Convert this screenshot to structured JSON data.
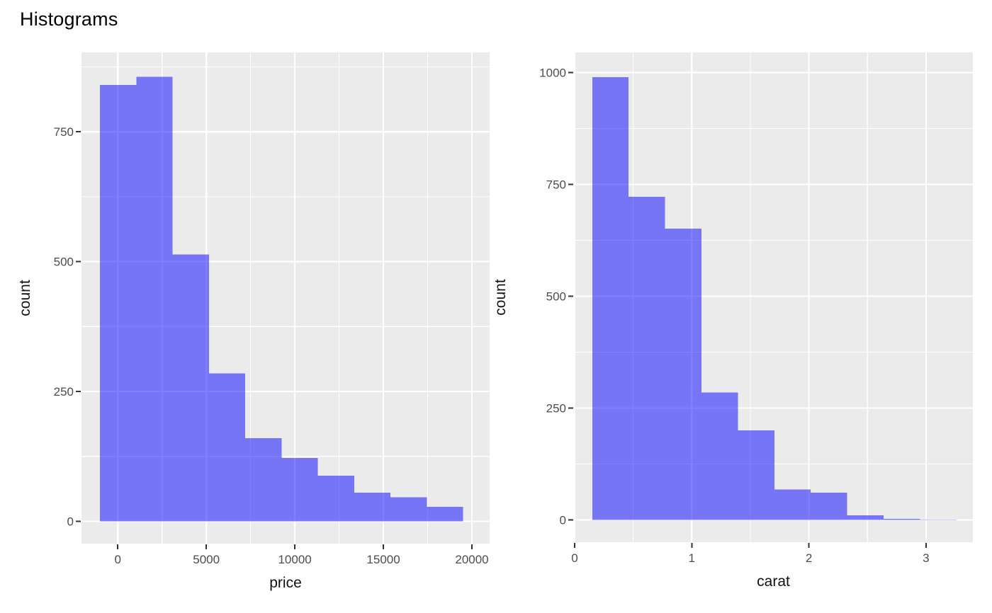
{
  "page_title": "Histograms",
  "colors": {
    "page_bg": "#FFFFFF",
    "panel_bg": "#EBEBEB",
    "grid": "#FFFFFF",
    "bar_fill": "#0000FF",
    "bar_alpha": 0.5,
    "tick_mark": "#333333",
    "tick_label": "#4D4D4D",
    "axis_title": "#111111",
    "title_color": "#000000"
  },
  "chart_data": [
    {
      "type": "bar",
      "variant": "histogram",
      "title": "",
      "xlabel": "price",
      "ylabel": "count",
      "bin_edges": [
        -1000,
        1050,
        3100,
        5150,
        7200,
        9250,
        11300,
        13350,
        15400,
        17450,
        19500
      ],
      "counts": [
        840,
        856,
        514,
        285,
        160,
        122,
        88,
        55,
        46,
        28
      ],
      "x_ticks": {
        "values": [
          0,
          5000,
          10000,
          15000,
          20000
        ],
        "labels": [
          "0",
          "5000",
          "10000",
          "15000",
          "20000"
        ],
        "minor": [
          2500,
          7500,
          12500,
          17500
        ]
      },
      "y_ticks": {
        "values": [
          0,
          250,
          500,
          750
        ],
        "labels": [
          "0",
          "250",
          "500",
          "750"
        ],
        "minor": [
          125,
          375,
          625,
          875
        ]
      },
      "xlim": [
        -2050,
        21000
      ],
      "ylim": [
        -43,
        903
      ],
      "grid": true,
      "legend": "none"
    },
    {
      "type": "bar",
      "variant": "histogram",
      "title": "",
      "xlabel": "carat",
      "ylabel": "count",
      "bin_edges": [
        0.15,
        0.461,
        0.772,
        1.083,
        1.394,
        1.705,
        2.016,
        2.327,
        2.638,
        2.949,
        3.26
      ],
      "counts": [
        990,
        722,
        651,
        285,
        200,
        68,
        61,
        10,
        2,
        1
      ],
      "x_ticks": {
        "values": [
          0,
          1,
          2,
          3
        ],
        "labels": [
          "0",
          "1",
          "2",
          "3"
        ],
        "minor": [
          0.5,
          1.5,
          2.5
        ]
      },
      "y_ticks": {
        "values": [
          0,
          250,
          500,
          750,
          1000
        ],
        "labels": [
          "0",
          "250",
          "500",
          "750",
          "1000"
        ],
        "minor": [
          125,
          375,
          625,
          875
        ]
      },
      "xlim": [
        -0.006,
        3.4
      ],
      "ylim": [
        -50,
        1045
      ],
      "grid": true,
      "legend": "none"
    }
  ]
}
